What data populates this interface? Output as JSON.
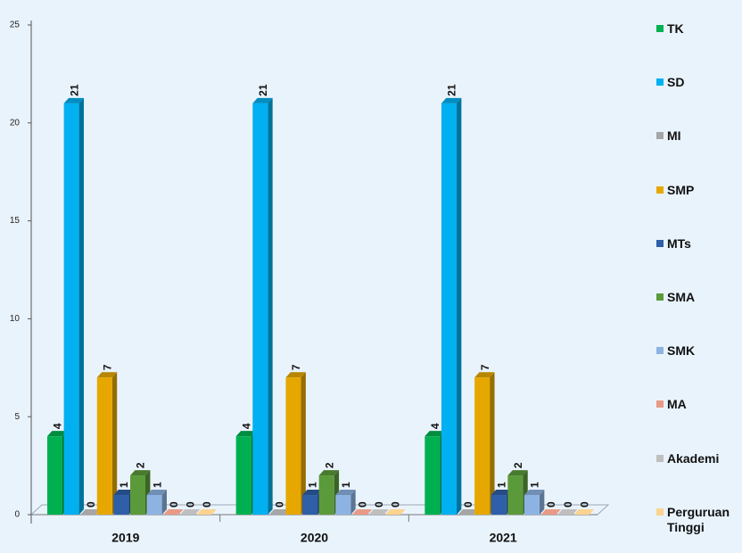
{
  "chart_data": {
    "type": "bar3d",
    "categories": [
      "2019",
      "2020",
      "2021"
    ],
    "series": [
      {
        "name": "TK",
        "color": "#00b050",
        "values": [
          4,
          4,
          4
        ]
      },
      {
        "name": "SD",
        "color": "#00b0f0",
        "values": [
          21,
          21,
          21
        ]
      },
      {
        "name": "MI",
        "color": "#a6a6a6",
        "values": [
          0,
          0,
          0
        ]
      },
      {
        "name": "SMP",
        "color": "#e6a800",
        "values": [
          7,
          7,
          7
        ]
      },
      {
        "name": "MTs",
        "color": "#2e5fa8",
        "values": [
          1,
          1,
          1
        ]
      },
      {
        "name": "SMA",
        "color": "#5b9a3a",
        "values": [
          2,
          2,
          2
        ]
      },
      {
        "name": "SMK",
        "color": "#8db3e2",
        "values": [
          1,
          1,
          1
        ]
      },
      {
        "name": "MA",
        "color": "#e99a86",
        "values": [
          0,
          0,
          0
        ]
      },
      {
        "name": "Akademi",
        "color": "#bfbfbf",
        "values": [
          0,
          0,
          0
        ]
      },
      {
        "name": "Perguruan Tinggi",
        "color": "#fcd38f",
        "values": [
          0,
          0,
          0
        ]
      }
    ],
    "ylim": [
      0,
      25
    ],
    "yticks": [
      0,
      5,
      10,
      15,
      20,
      25
    ],
    "legend": "right"
  }
}
